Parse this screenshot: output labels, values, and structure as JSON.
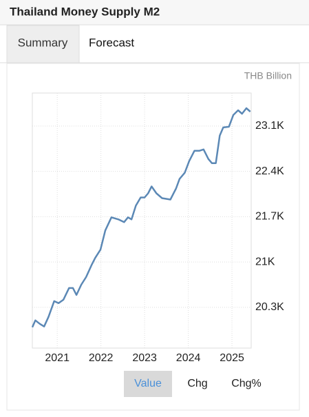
{
  "chart_data": {
    "type": "line",
    "title": "Thailand Money Supply M2",
    "y_label": "THB Billion",
    "x": [
      2020.43,
      2020.5,
      2020.6,
      2020.7,
      2020.8,
      2020.93,
      2021.03,
      2021.14,
      2021.27,
      2021.36,
      2021.44,
      2021.55,
      2021.66,
      2021.79,
      2021.87,
      2021.99,
      2022.1,
      2022.24,
      2022.4,
      2022.53,
      2022.62,
      2022.7,
      2022.8,
      2022.91,
      2023.0,
      2023.08,
      2023.16,
      2023.27,
      2023.4,
      2023.59,
      2023.72,
      2023.8,
      2023.92,
      2024.02,
      2024.14,
      2024.25,
      2024.35,
      2024.46,
      2024.54,
      2024.63,
      2024.72,
      2024.8,
      2024.93,
      2025.03,
      2025.14,
      2025.23,
      2025.33,
      2025.42
    ],
    "values": [
      19992,
      20098,
      20045,
      20003,
      20152,
      20395,
      20364,
      20417,
      20597,
      20597,
      20491,
      20650,
      20767,
      20958,
      21064,
      21191,
      21488,
      21690,
      21658,
      21615,
      21690,
      21658,
      21870,
      21997,
      21997,
      22061,
      22167,
      22061,
      21986,
      21965,
      22135,
      22283,
      22379,
      22559,
      22718,
      22718,
      22739,
      22591,
      22527,
      22527,
      22952,
      23079,
      23089,
      23270,
      23344,
      23291,
      23376,
      23323
    ],
    "color": "#5b88b5",
    "xlim": [
      2020.43,
      2025.44
    ],
    "xticks": [
      2021,
      2022,
      2023,
      2024,
      2025
    ],
    "ylim": [
      19670,
      23610
    ],
    "yticks": [
      {
        "value": 20300,
        "label": "20.3K"
      },
      {
        "value": 21000,
        "label": "21K"
      },
      {
        "value": 21700,
        "label": "21.7K"
      },
      {
        "value": 22400,
        "label": "22.4K"
      },
      {
        "value": 23100,
        "label": "23.1K"
      }
    ],
    "grid": true
  },
  "tabs": [
    "Summary",
    "Forecast"
  ],
  "buttons": [
    "Value",
    "Chg",
    "Chg%"
  ]
}
